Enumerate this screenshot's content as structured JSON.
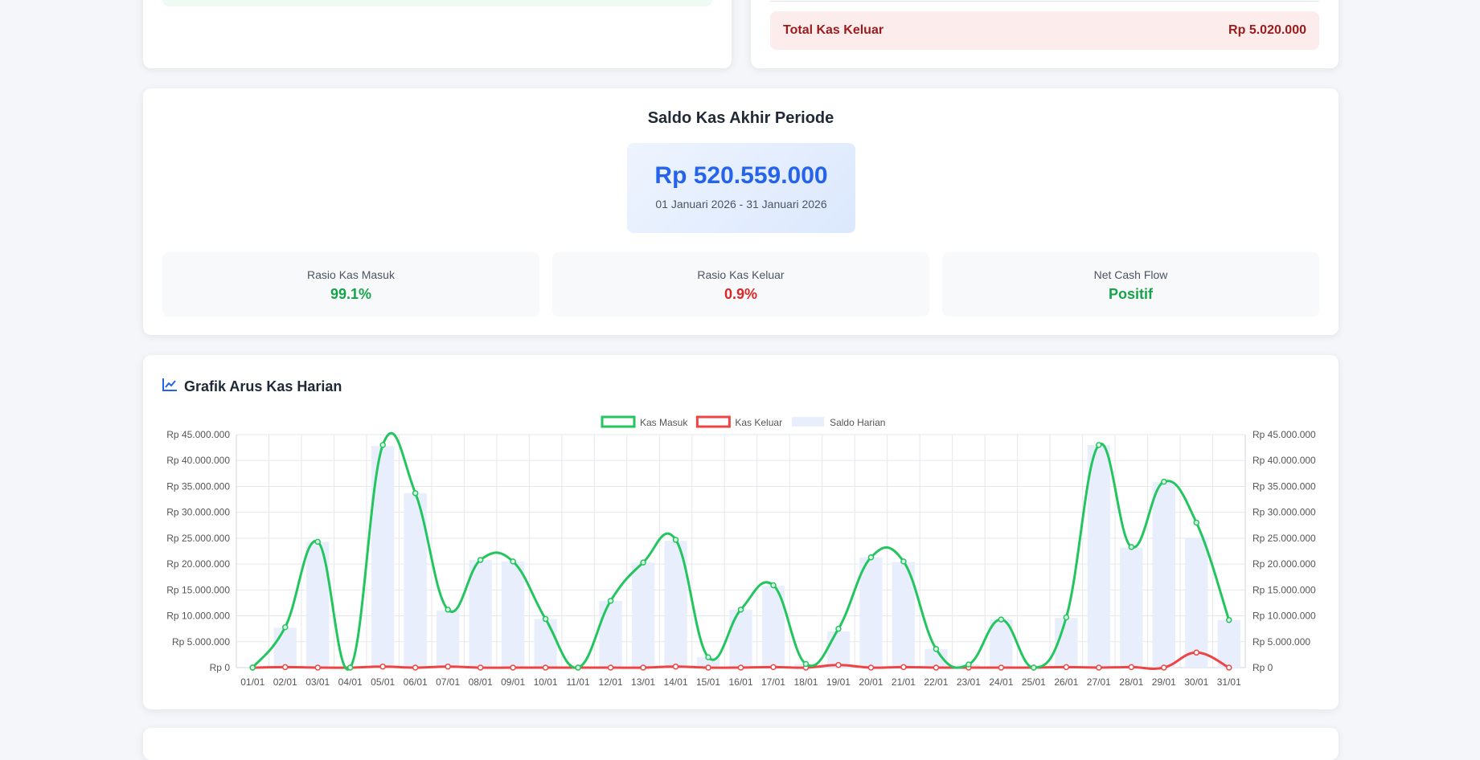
{
  "top_left_card": {},
  "top_right_card": {
    "total_label": "Total Kas Keluar",
    "total_value": "Rp 5.020.000"
  },
  "saldo": {
    "title": "Saldo Kas Akhir Periode",
    "amount": "Rp 520.559.000",
    "period": "01 Januari 2026 - 31 Januari 2026",
    "ratios": [
      {
        "label": "Rasio Kas Masuk",
        "value": "99.1%"
      },
      {
        "label": "Rasio Kas Keluar",
        "value": "0.9%"
      },
      {
        "label": "Net Cash Flow",
        "value": "Positif"
      }
    ]
  },
  "chart_section": {
    "title": "Grafik Arus Kas Harian",
    "icon": "chart-line-icon"
  },
  "colors": {
    "masuk": "#22c55e",
    "keluar": "#ef4444",
    "saldo_bar": "#e8eefc",
    "accent": "#2563eb"
  },
  "chart_data": {
    "type": "line",
    "categories": [
      "01/01",
      "02/01",
      "03/01",
      "04/01",
      "05/01",
      "06/01",
      "07/01",
      "08/01",
      "09/01",
      "10/01",
      "11/01",
      "12/01",
      "13/01",
      "14/01",
      "15/01",
      "16/01",
      "17/01",
      "18/01",
      "19/01",
      "20/01",
      "21/01",
      "22/01",
      "23/01",
      "24/01",
      "25/01",
      "26/01",
      "27/01",
      "28/01",
      "29/01",
      "30/01",
      "31/01"
    ],
    "series": [
      {
        "name": "Kas Masuk",
        "type": "line",
        "values": [
          0,
          7800000,
          24300000,
          0,
          43000000,
          33700000,
          11200000,
          20800000,
          20500000,
          9400000,
          0,
          12900000,
          20300000,
          24700000,
          2000000,
          11200000,
          15900000,
          700000,
          7500000,
          21300000,
          20500000,
          3600000,
          600000,
          9300000,
          0,
          9700000,
          43000000,
          23300000,
          35900000,
          28000000,
          9200000
        ]
      },
      {
        "name": "Kas Keluar",
        "type": "line",
        "values": [
          0,
          100000,
          0,
          0,
          200000,
          0,
          200000,
          0,
          0,
          0,
          0,
          0,
          0,
          200000,
          0,
          0,
          100000,
          0,
          500000,
          0,
          100000,
          0,
          0,
          0,
          0,
          100000,
          0,
          100000,
          0,
          2900000,
          0
        ]
      },
      {
        "name": "Saldo Harian",
        "type": "bar",
        "values": [
          0,
          7700000,
          24300000,
          0,
          42800000,
          33700000,
          11000000,
          20800000,
          20500000,
          9400000,
          0,
          12900000,
          20300000,
          24500000,
          2000000,
          11200000,
          15800000,
          700000,
          7000000,
          21300000,
          20400000,
          3600000,
          600000,
          9300000,
          0,
          9600000,
          43000000,
          23200000,
          35900000,
          25100000,
          9200000
        ]
      }
    ],
    "ylim": [
      0,
      45000000
    ],
    "yticks": [
      "Rp 0",
      "Rp 5.000.000",
      "Rp 10.000.000",
      "Rp 15.000.000",
      "Rp 20.000.000",
      "Rp 25.000.000",
      "Rp 30.000.000",
      "Rp 35.000.000",
      "Rp 40.000.000",
      "Rp 45.000.000"
    ],
    "grid": true,
    "legend": "top-center",
    "dual_axis": true
  }
}
